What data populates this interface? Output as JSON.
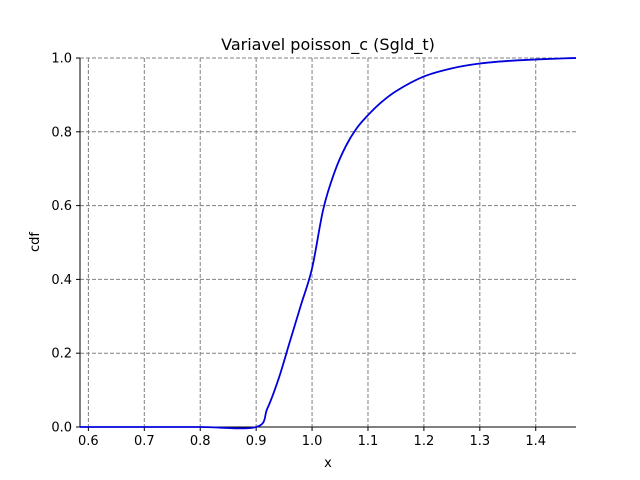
{
  "chart_data": {
    "type": "line",
    "title": "Variavel poisson_c (Sgld_t)",
    "xlabel": "x",
    "ylabel": "cdf",
    "xlim": [
      0.585,
      1.472
    ],
    "ylim": [
      0.0,
      1.0
    ],
    "xticks": [
      "0.6",
      "0.7",
      "0.8",
      "0.9",
      "1.0",
      "1.1",
      "1.2",
      "1.3",
      "1.4"
    ],
    "yticks": [
      "0.0",
      "0.2",
      "0.4",
      "0.6",
      "0.8",
      "1.0"
    ],
    "grid": true,
    "grid_style": "dashed",
    "legend": "none",
    "series": [
      {
        "color": "#0000dd",
        "x": [
          0.585,
          0.6,
          0.7,
          0.8,
          0.9,
          0.92,
          0.94,
          0.96,
          0.98,
          1.0,
          1.02,
          1.04,
          1.06,
          1.08,
          1.1,
          1.12,
          1.15,
          1.2,
          1.25,
          1.3,
          1.35,
          1.4,
          1.45,
          1.472
        ],
        "y": [
          0.0,
          0.0,
          0.0,
          0.0,
          0.0,
          0.05,
          0.13,
          0.23,
          0.33,
          0.43,
          0.59,
          0.69,
          0.76,
          0.81,
          0.845,
          0.875,
          0.91,
          0.95,
          0.972,
          0.985,
          0.992,
          0.996,
          0.999,
          1.0
        ]
      }
    ]
  }
}
